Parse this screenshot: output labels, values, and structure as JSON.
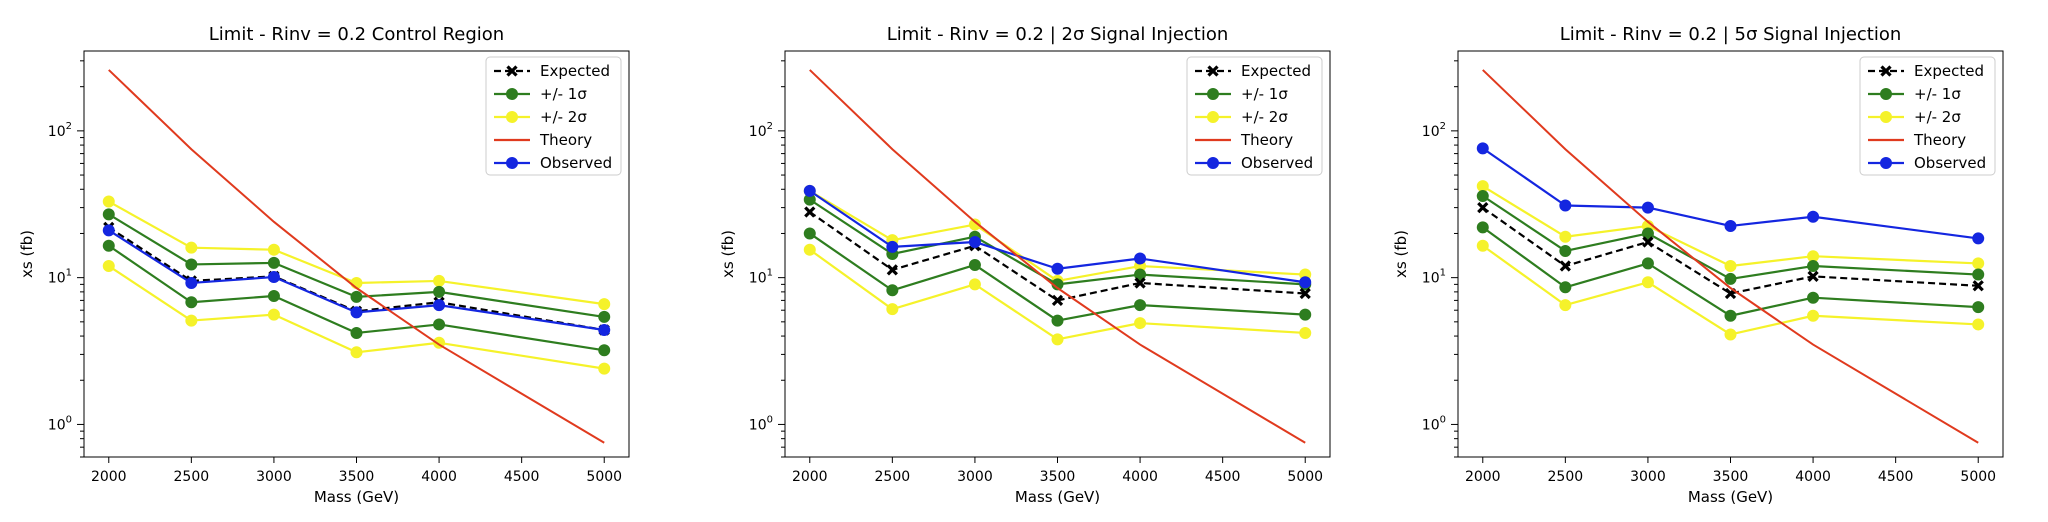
{
  "chart_data": [
    {
      "type": "line",
      "title": "Limit - Rinv = 0.2 Control Region",
      "xlabel": "Mass (GeV)",
      "ylabel": "xs (fb)",
      "xlim": [
        1850,
        5150
      ],
      "ylim": [
        0.6,
        350
      ],
      "yscale": "log",
      "xticks": [
        2000,
        2500,
        3000,
        3500,
        4000,
        4500,
        5000
      ],
      "yticks": [
        {
          "value": 1,
          "base": "10",
          "exp": "0"
        },
        {
          "value": 10,
          "base": "10",
          "exp": "1"
        },
        {
          "value": 100,
          "base": "10",
          "exp": "2"
        }
      ],
      "legend": "top-right",
      "legend_entries": [
        {
          "key": "expected",
          "text": "Expected"
        },
        {
          "key": "one_sigma",
          "text": "+/- 1σ"
        },
        {
          "key": "two_sigma",
          "text": "+/- 2σ"
        },
        {
          "key": "theory",
          "text": "Theory"
        },
        {
          "key": "observed",
          "text": "Observed"
        }
      ],
      "x": [
        2000,
        2500,
        3000,
        3500,
        4000,
        5000
      ],
      "theory": {
        "x": [
          2000,
          2500,
          3000,
          3500,
          4000,
          5000
        ],
        "values": [
          260,
          75,
          24,
          8.5,
          3.5,
          0.75
        ]
      },
      "series": [
        {
          "key": "two_sigma",
          "role": "+2σ",
          "values": [
            33,
            16,
            15.5,
            9.2,
            9.5,
            6.6
          ]
        },
        {
          "key": "two_sigma",
          "role": "-2σ",
          "values": [
            12,
            5.1,
            5.6,
            3.1,
            3.6,
            2.4
          ]
        },
        {
          "key": "one_sigma",
          "role": "+1σ",
          "values": [
            27,
            12.3,
            12.6,
            7.4,
            8,
            5.4
          ]
        },
        {
          "key": "one_sigma",
          "role": "-1σ",
          "values": [
            16.5,
            6.8,
            7.5,
            4.2,
            4.8,
            3.2
          ]
        },
        {
          "key": "expected",
          "role": "Expected",
          "values": [
            22,
            9.5,
            10.2,
            5.9,
            6.8,
            4.4
          ]
        },
        {
          "key": "observed",
          "role": "Observed",
          "values": [
            21,
            9.2,
            10.1,
            5.8,
            6.5,
            4.4
          ]
        }
      ]
    },
    {
      "type": "line",
      "title": "Limit - Rinv = 0.2 | 2σ Signal Injection",
      "xlabel": "Mass (GeV)",
      "ylabel": "xs (fb)",
      "xlim": [
        1850,
        5150
      ],
      "ylim": [
        0.6,
        350
      ],
      "yscale": "log",
      "xticks": [
        2000,
        2500,
        3000,
        3500,
        4000,
        4500,
        5000
      ],
      "yticks": [
        {
          "value": 1,
          "base": "10",
          "exp": "0"
        },
        {
          "value": 10,
          "base": "10",
          "exp": "1"
        },
        {
          "value": 100,
          "base": "10",
          "exp": "2"
        }
      ],
      "legend": "top-right",
      "legend_entries": [
        {
          "key": "expected",
          "text": "Expected"
        },
        {
          "key": "one_sigma",
          "text": "+/- 1σ"
        },
        {
          "key": "two_sigma",
          "text": "+/- 2σ"
        },
        {
          "key": "theory",
          "text": "Theory"
        },
        {
          "key": "observed",
          "text": "Observed"
        }
      ],
      "x": [
        2000,
        2500,
        3000,
        3500,
        4000,
        5000
      ],
      "theory": {
        "x": [
          2000,
          2500,
          3000,
          3500,
          4000,
          5000
        ],
        "values": [
          260,
          75,
          24,
          8.5,
          3.5,
          0.75
        ]
      },
      "series": [
        {
          "key": "two_sigma",
          "role": "+2σ",
          "values": [
            39,
            18,
            23,
            9.5,
            12,
            10.5
          ]
        },
        {
          "key": "two_sigma",
          "role": "-2σ",
          "values": [
            15.5,
            6.1,
            9,
            3.8,
            4.9,
            4.2
          ]
        },
        {
          "key": "one_sigma",
          "role": "+1σ",
          "values": [
            34,
            14.5,
            19,
            9,
            10.5,
            9
          ]
        },
        {
          "key": "one_sigma",
          "role": "-1σ",
          "values": [
            20,
            8.2,
            12.2,
            5.1,
            6.5,
            5.6
          ]
        },
        {
          "key": "expected",
          "role": "Expected",
          "values": [
            28,
            11.3,
            16.5,
            7,
            9.2,
            7.8
          ]
        },
        {
          "key": "observed",
          "role": "Observed",
          "values": [
            39,
            16.2,
            17.5,
            11.5,
            13.5,
            9.3
          ]
        }
      ]
    },
    {
      "type": "line",
      "title": "Limit - Rinv = 0.2 | 5σ Signal Injection",
      "xlabel": "Mass (GeV)",
      "ylabel": "xs (fb)",
      "xlim": [
        1850,
        5150
      ],
      "ylim": [
        0.6,
        350
      ],
      "yscale": "log",
      "xticks": [
        2000,
        2500,
        3000,
        3500,
        4000,
        4500,
        5000
      ],
      "yticks": [
        {
          "value": 1,
          "base": "10",
          "exp": "0"
        },
        {
          "value": 10,
          "base": "10",
          "exp": "1"
        },
        {
          "value": 100,
          "base": "10",
          "exp": "2"
        }
      ],
      "legend": "top-right",
      "legend_entries": [
        {
          "key": "expected",
          "text": "Expected"
        },
        {
          "key": "one_sigma",
          "text": "+/- 1σ"
        },
        {
          "key": "two_sigma",
          "text": "+/- 2σ"
        },
        {
          "key": "theory",
          "text": "Theory"
        },
        {
          "key": "observed",
          "text": "Observed"
        }
      ],
      "x": [
        2000,
        2500,
        3000,
        3500,
        4000,
        5000
      ],
      "theory": {
        "x": [
          2000,
          2500,
          3000,
          3500,
          4000,
          5000
        ],
        "values": [
          260,
          75,
          24,
          8.5,
          3.5,
          0.75
        ]
      },
      "series": [
        {
          "key": "two_sigma",
          "role": "+2σ",
          "values": [
            42,
            19,
            22.5,
            12,
            14,
            12.5
          ]
        },
        {
          "key": "two_sigma",
          "role": "-2σ",
          "values": [
            16.5,
            6.5,
            9.3,
            4.1,
            5.5,
            4.8
          ]
        },
        {
          "key": "one_sigma",
          "role": "+1σ",
          "values": [
            36,
            15.2,
            20,
            9.8,
            12,
            10.5
          ]
        },
        {
          "key": "one_sigma",
          "role": "-1σ",
          "values": [
            22,
            8.6,
            12.5,
            5.5,
            7.3,
            6.3
          ]
        },
        {
          "key": "expected",
          "role": "Expected",
          "values": [
            30,
            12,
            17.5,
            7.8,
            10.2,
            8.8
          ]
        },
        {
          "key": "observed",
          "role": "Observed",
          "values": [
            76,
            31,
            30,
            22.5,
            26,
            18.5
          ]
        }
      ]
    }
  ],
  "style": {
    "expected": "#000000",
    "one_sigma": "#2e7d1f",
    "two_sigma": "#f5f22a",
    "theory": "#e03a1e",
    "observed": "#1426e0"
  }
}
